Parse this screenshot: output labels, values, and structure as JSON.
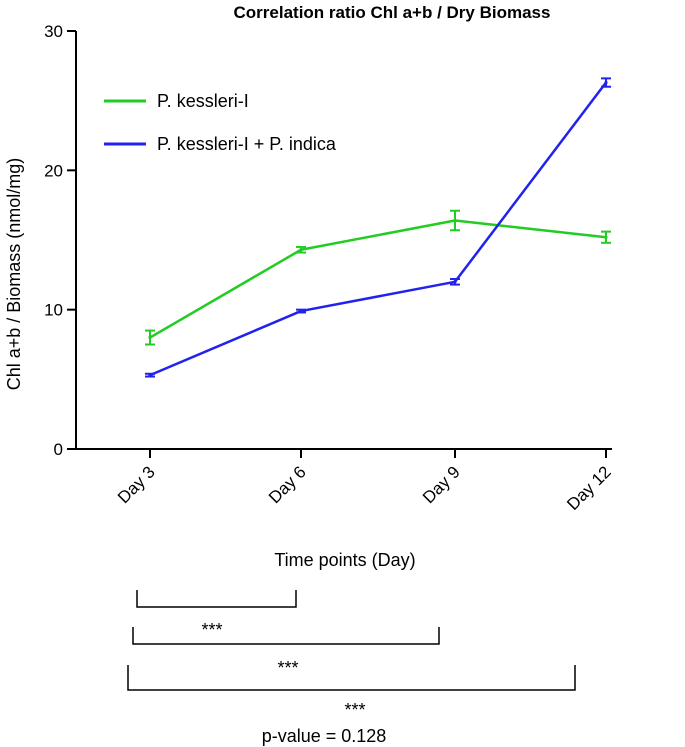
{
  "chart_data": {
    "type": "line",
    "title": "Correlation ratio Chl a+b / Dry Biomass",
    "xlabel": "Time points (Day)",
    "ylabel": "Chl a+b / Biomass (nmol/mg)",
    "ylim": [
      0,
      30
    ],
    "yticks": [
      0,
      10,
      20,
      30
    ],
    "categories": [
      "Day 3",
      "Day 6",
      "Day 9",
      "Day 12"
    ],
    "legend_position": "top-left",
    "series": [
      {
        "name": "P. kessleri-I",
        "color": "#22cc22",
        "values": [
          8.0,
          14.3,
          16.4,
          15.2
        ],
        "errors": [
          0.5,
          0.2,
          0.7,
          0.4
        ]
      },
      {
        "name": "P. kessleri-I + P. indica",
        "color": "#2222ee",
        "values": [
          5.3,
          9.9,
          12.0,
          26.3
        ],
        "errors": [
          0.1,
          0.1,
          0.2,
          0.3
        ]
      }
    ],
    "significance": [
      {
        "from": "Day 3",
        "to": "Day 6",
        "label": "***"
      },
      {
        "from": "Day 3",
        "to": "Day 9",
        "label": "***"
      },
      {
        "from": "Day 3",
        "to": "Day 12",
        "label": "***"
      }
    ],
    "pvalue_text": "p-value = 0.128"
  }
}
